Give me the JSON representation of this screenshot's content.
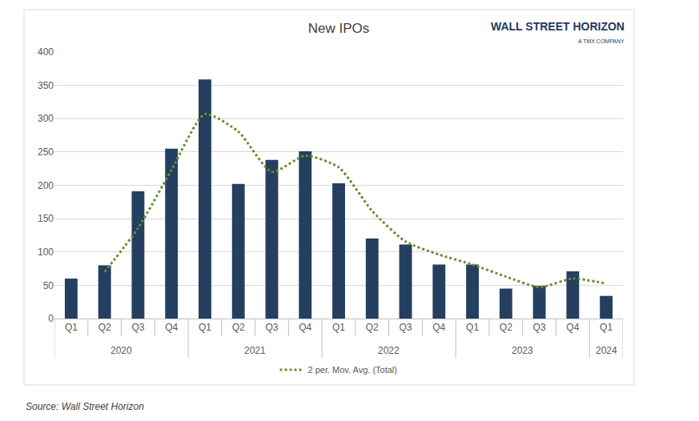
{
  "chart_data": {
    "type": "bar",
    "title": "New IPOs",
    "logo": "WALL STREET HORIZON",
    "logo_subtitle": "A TMX COMPANY",
    "source": "Source: Wall Street Horizon",
    "categories": [
      "Q1",
      "Q2",
      "Q3",
      "Q4",
      "Q1",
      "Q2",
      "Q3",
      "Q4",
      "Q1",
      "Q2",
      "Q3",
      "Q4",
      "Q1",
      "Q2",
      "Q3",
      "Q4",
      "Q1"
    ],
    "groups": [
      "2020",
      "2020",
      "2020",
      "2020",
      "2021",
      "2021",
      "2021",
      "2021",
      "2022",
      "2022",
      "2022",
      "2022",
      "2023",
      "2023",
      "2023",
      "2023",
      "2024"
    ],
    "series": [
      {
        "type": "bar",
        "color": "#243f60",
        "values": [
          60,
          80,
          191,
          255,
          359,
          202,
          238,
          251,
          203,
          120,
          111,
          81,
          81,
          45,
          49,
          71,
          34
        ]
      },
      {
        "name": "2 per. Mov. Avg. (Total)",
        "type": "line",
        "line_style": "dotted",
        "color": "#6e8b2e",
        "values": [
          null,
          70,
          135.5,
          223,
          307,
          280.5,
          220,
          244.5,
          227,
          161.5,
          115.5,
          96,
          81,
          63,
          47,
          60,
          52.5
        ]
      }
    ],
    "ylim": [
      0,
      400
    ],
    "yticks": [
      0,
      50,
      100,
      150,
      200,
      250,
      300,
      350,
      400
    ],
    "grid": true,
    "legend": "bottom"
  }
}
